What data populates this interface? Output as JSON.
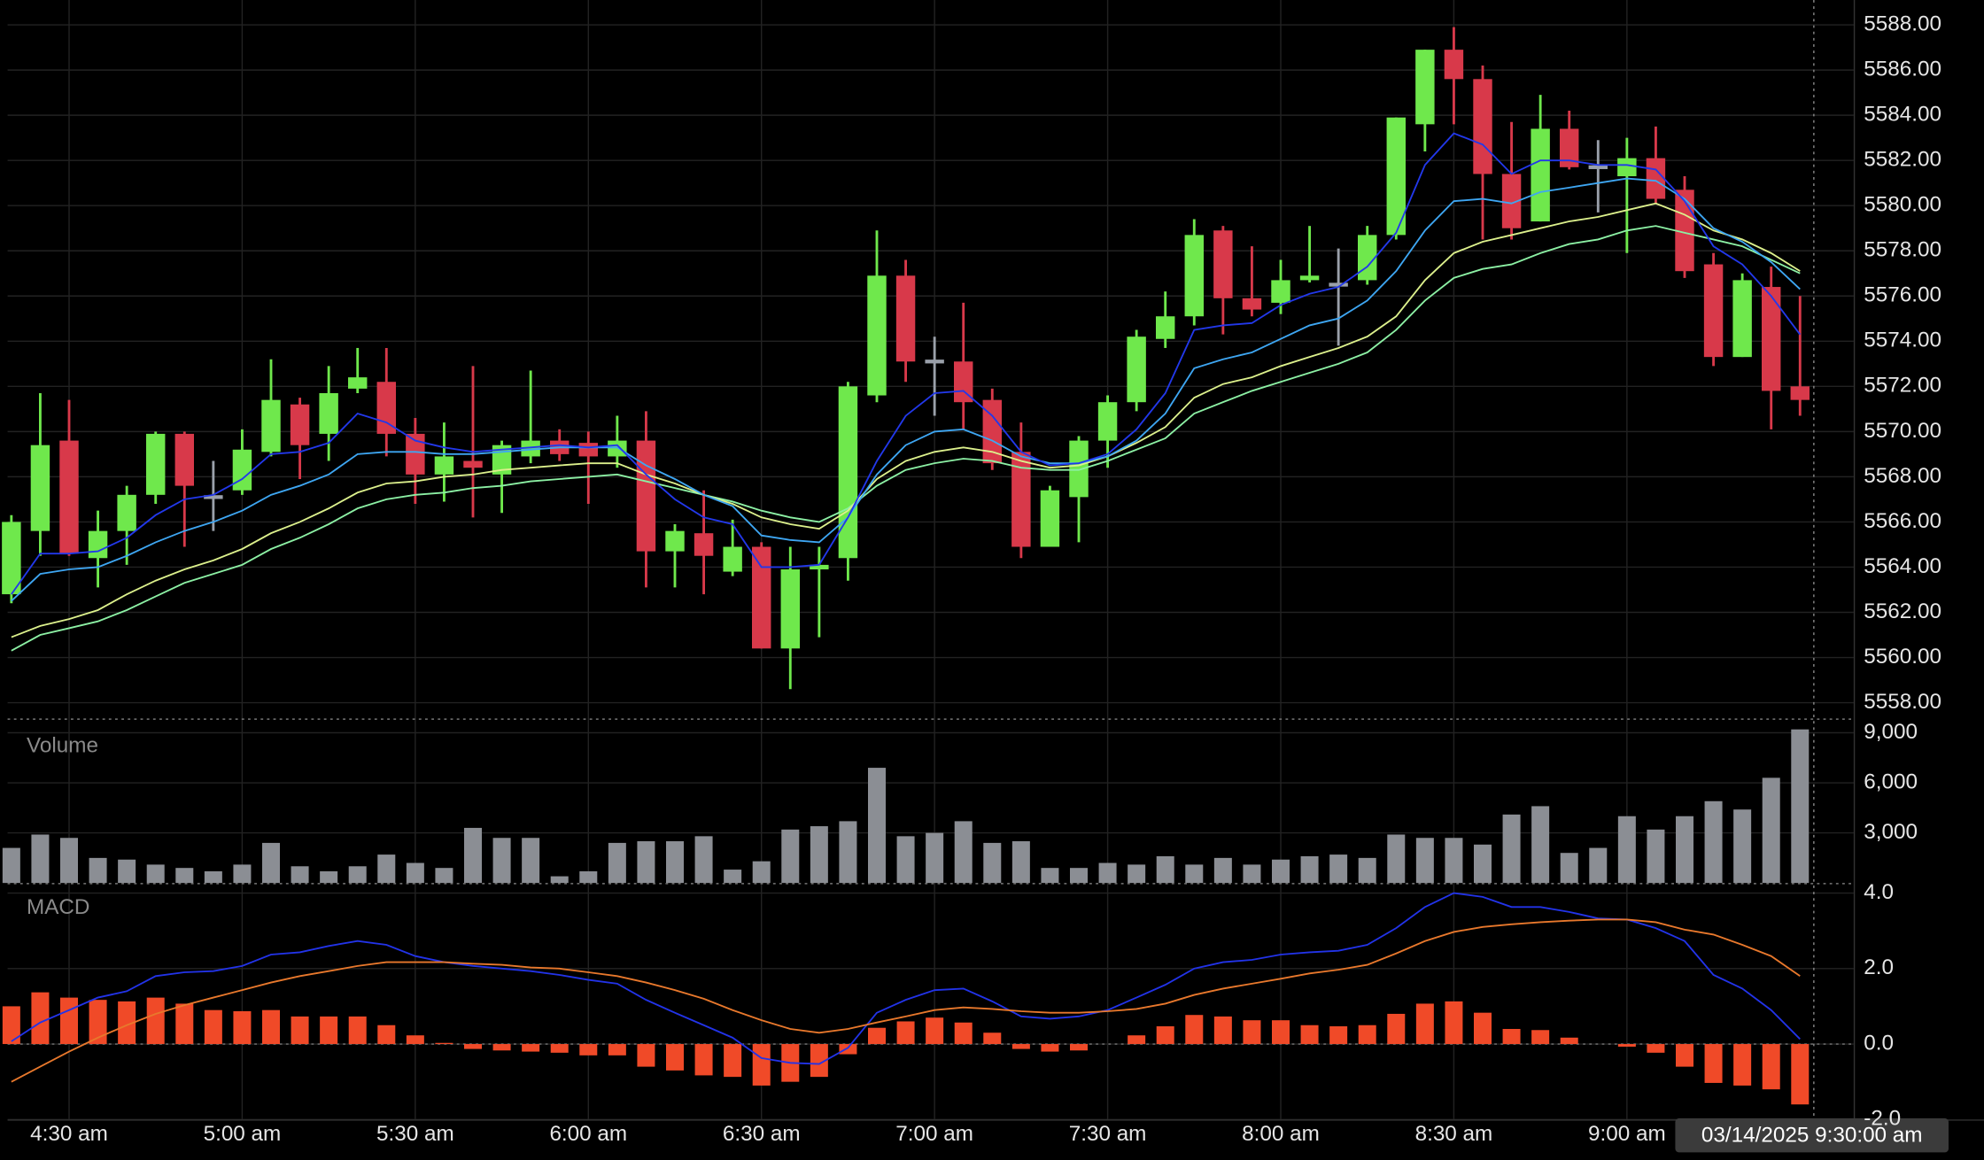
{
  "chart_data": [
    {
      "type": "candlestick",
      "categories": [
        null,
        null,
        "4:30 am",
        null,
        null,
        null,
        null,
        null,
        "5:00 am",
        null,
        null,
        null,
        null,
        null,
        "5:30 am",
        null,
        null,
        null,
        null,
        null,
        "6:00 am",
        null,
        null,
        null,
        null,
        null,
        "6:30 am",
        null,
        null,
        null,
        null,
        null,
        "7:00 am",
        null,
        null,
        null,
        null,
        null,
        "7:30 am",
        null,
        null,
        null,
        null,
        null,
        "8:00 am",
        null,
        null,
        null,
        null,
        null,
        "8:30 am",
        null,
        null,
        null,
        null,
        null,
        "9:00 am",
        null,
        null,
        null,
        null,
        null,
        null
      ],
      "open": [
        5562.8,
        5565.6,
        5569.6,
        5564.4,
        5565.6,
        5567.2,
        5569.9,
        5567.1,
        5567.4,
        5569.1,
        5571.2,
        5569.9,
        5571.9,
        5572.2,
        5569.9,
        5568.1,
        5568.7,
        5568.1,
        5568.9,
        5569.6,
        5569.5,
        5568.9,
        5569.6,
        5564.7,
        5565.5,
        5563.8,
        5564.9,
        5560.4,
        5563.9,
        5564.4,
        5571.6,
        5576.9,
        5573.1,
        5573.1,
        5571.4,
        5569.1,
        5564.9,
        5567.1,
        5569.6,
        5571.3,
        5574.1,
        5575.1,
        5578.9,
        5575.9,
        5575.7,
        5576.7,
        5576.5,
        5576.7,
        5578.7,
        5583.6,
        5586.9,
        5585.6,
        5581.4,
        5579.3,
        5583.4,
        5581.7,
        5581.3,
        5582.1,
        5580.7,
        5577.4,
        5573.3,
        5576.4,
        5572.0
      ],
      "high": [
        5566.3,
        5571.7,
        5571.4,
        5566.5,
        5567.6,
        5570.0,
        5570.0,
        5568.7,
        5570.1,
        5573.2,
        5571.5,
        5572.9,
        5573.7,
        5573.7,
        5570.6,
        5570.4,
        5572.9,
        5569.6,
        5572.7,
        5570.1,
        5570.0,
        5570.7,
        5570.9,
        5565.9,
        5567.4,
        5566.1,
        5565.1,
        5564.9,
        5564.9,
        5572.2,
        5578.9,
        5577.6,
        5574.2,
        5575.7,
        5571.9,
        5570.4,
        5567.6,
        5569.8,
        5571.6,
        5574.5,
        5576.2,
        5579.4,
        5579.1,
        5578.2,
        5577.6,
        5579.1,
        5578.1,
        5579.1,
        5583.9,
        5586.9,
        5587.9,
        5586.2,
        5583.7,
        5584.9,
        5584.2,
        5582.9,
        5583.0,
        5583.5,
        5581.3,
        5577.9,
        5577.0,
        5577.3,
        5576.0
      ],
      "low": [
        5562.4,
        5564.5,
        5564.5,
        5563.1,
        5564.1,
        5566.8,
        5564.9,
        5565.6,
        5567.2,
        5568.9,
        5567.9,
        5568.7,
        5571.7,
        5568.9,
        5566.8,
        5566.9,
        5566.2,
        5566.4,
        5568.6,
        5568.7,
        5566.8,
        5568.4,
        5563.1,
        5563.1,
        5562.8,
        5563.6,
        5560.4,
        5558.6,
        5560.9,
        5563.4,
        5571.3,
        5572.2,
        5570.7,
        5570.1,
        5568.3,
        5564.4,
        5564.9,
        5565.1,
        5568.4,
        5570.9,
        5573.7,
        5574.7,
        5574.3,
        5575.1,
        5575.2,
        5576.6,
        5573.8,
        5576.5,
        5578.5,
        5582.4,
        5583.6,
        5578.5,
        5578.5,
        5579.3,
        5581.6,
        5579.7,
        5577.9,
        5580.1,
        5576.8,
        5572.9,
        5573.3,
        5570.1,
        5570.7
      ],
      "close": [
        5566.0,
        5569.4,
        5564.6,
        5565.6,
        5567.2,
        5569.9,
        5567.6,
        5567.1,
        5569.2,
        5571.4,
        5569.4,
        5571.7,
        5572.4,
        5569.9,
        5568.1,
        5568.9,
        5568.4,
        5569.4,
        5569.6,
        5569.0,
        5568.9,
        5569.6,
        5564.7,
        5565.6,
        5564.5,
        5564.9,
        5560.4,
        5563.9,
        5564.1,
        5572.0,
        5576.9,
        5573.1,
        5573.1,
        5571.3,
        5568.6,
        5564.9,
        5567.4,
        5569.6,
        5571.3,
        5574.2,
        5575.1,
        5578.7,
        5575.9,
        5575.4,
        5576.7,
        5576.9,
        5576.5,
        5578.7,
        5583.9,
        5586.9,
        5585.6,
        5581.4,
        5579.0,
        5583.4,
        5581.7,
        5581.7,
        5582.1,
        5580.3,
        5577.1,
        5573.3,
        5576.7,
        5571.8,
        5571.4
      ],
      "up_color": "#6fe84c",
      "down_color": "#d8394a",
      "doji_color": "#9aa0aa",
      "series": [
        {
          "color": "#8cf0a4",
          "values": [
            5560.3,
            5561.0,
            5561.3,
            5561.6,
            5562.1,
            5562.7,
            5563.3,
            5563.7,
            5564.1,
            5564.8,
            5565.3,
            5565.9,
            5566.6,
            5567.0,
            5567.2,
            5567.3,
            5567.5,
            5567.6,
            5567.8,
            5567.9,
            5568.0,
            5568.1,
            5567.8,
            5567.5,
            5567.2,
            5566.9,
            5566.5,
            5566.2,
            5566.0,
            5566.6,
            5567.6,
            5568.3,
            5568.6,
            5568.8,
            5568.7,
            5568.4,
            5568.3,
            5568.3,
            5568.7,
            5569.2,
            5569.7,
            5570.8,
            5571.3,
            5571.8,
            5572.2,
            5572.6,
            5573.0,
            5573.5,
            5574.5,
            5575.8,
            5576.8,
            5577.2,
            5577.4,
            5577.9,
            5578.3,
            5578.5,
            5578.9,
            5579.1,
            5578.8,
            5578.5,
            5578.2,
            5577.6,
            5577.0
          ]
        },
        {
          "color": "#dcf08c",
          "values": [
            5560.9,
            5561.4,
            5561.7,
            5562.1,
            5562.8,
            5563.4,
            5563.9,
            5564.3,
            5564.8,
            5565.5,
            5566.0,
            5566.6,
            5567.3,
            5567.7,
            5567.8,
            5568.0,
            5568.1,
            5568.3,
            5568.4,
            5568.5,
            5568.6,
            5568.6,
            5568.1,
            5567.7,
            5567.2,
            5566.8,
            5566.2,
            5565.9,
            5565.7,
            5566.5,
            5567.9,
            5568.7,
            5569.1,
            5569.3,
            5569.1,
            5568.7,
            5568.4,
            5568.5,
            5568.9,
            5569.5,
            5570.2,
            5571.5,
            5572.1,
            5572.4,
            5572.9,
            5573.3,
            5573.7,
            5574.2,
            5575.1,
            5576.7,
            5577.9,
            5578.4,
            5578.7,
            5579.0,
            5579.3,
            5579.5,
            5579.8,
            5580.1,
            5579.6,
            5578.9,
            5578.5,
            5577.9,
            5577.1
          ]
        },
        {
          "color": "#3ea6f2",
          "values": [
            5562.5,
            5563.7,
            5563.9,
            5564.0,
            5564.5,
            5565.1,
            5565.6,
            5566.0,
            5566.5,
            5567.2,
            5567.6,
            5568.1,
            5569.0,
            5569.1,
            5569.1,
            5569.0,
            5569.0,
            5569.1,
            5569.2,
            5569.3,
            5569.3,
            5569.3,
            5568.5,
            5567.9,
            5567.2,
            5566.7,
            5565.4,
            5565.2,
            5565.1,
            5566.2,
            5568.1,
            5569.4,
            5570.0,
            5570.1,
            5569.6,
            5568.9,
            5568.6,
            5568.6,
            5568.9,
            5569.6,
            5570.8,
            5572.8,
            5573.2,
            5573.5,
            5574.1,
            5574.7,
            5575.0,
            5575.8,
            5577.1,
            5578.9,
            5580.2,
            5580.3,
            5580.1,
            5580.6,
            5580.8,
            5581.0,
            5581.2,
            5581.1,
            5580.3,
            5579.0,
            5578.4,
            5577.5,
            5576.3
          ]
        },
        {
          "color": "#2238ea",
          "values": [
            5562.8,
            5564.6,
            5564.6,
            5564.7,
            5565.3,
            5566.3,
            5567.0,
            5567.2,
            5567.9,
            5569.0,
            5569.1,
            5569.5,
            5570.8,
            5570.4,
            5569.6,
            5569.3,
            5569.1,
            5569.2,
            5569.3,
            5569.4,
            5569.3,
            5569.4,
            5568.1,
            5567.0,
            5566.2,
            5565.9,
            5564.0,
            5564.0,
            5564.1,
            5566.2,
            5568.7,
            5570.7,
            5571.7,
            5571.8,
            5570.7,
            5569.1,
            5568.5,
            5568.6,
            5569.0,
            5570.1,
            5571.7,
            5574.5,
            5574.7,
            5574.8,
            5575.6,
            5576.1,
            5576.4,
            5577.3,
            5578.8,
            5581.8,
            5583.2,
            5582.7,
            5581.4,
            5582.0,
            5582.0,
            5581.8,
            5581.8,
            5581.6,
            5580.2,
            5578.2,
            5577.4,
            5576.0,
            5574.3
          ]
        }
      ],
      "ylim": [
        5557.3,
        5589.1
      ],
      "yticks": [
        {
          "value": 5558,
          "label": "5558.00"
        },
        {
          "value": 5560,
          "label": "5560.00"
        },
        {
          "value": 5562,
          "label": "5562.00"
        },
        {
          "value": 5564,
          "label": "5564.00"
        },
        {
          "value": 5566,
          "label": "5566.00"
        },
        {
          "value": 5568,
          "label": "5568.00"
        },
        {
          "value": 5570,
          "label": "5570.00"
        },
        {
          "value": 5572,
          "label": "5572.00"
        },
        {
          "value": 5574,
          "label": "5574.00"
        },
        {
          "value": 5576,
          "label": "5576.00"
        },
        {
          "value": 5578,
          "label": "5578.00"
        },
        {
          "value": 5580,
          "label": "5580.00"
        },
        {
          "value": 5582,
          "label": "5582.00"
        },
        {
          "value": 5584,
          "label": "5584.00"
        },
        {
          "value": 5586,
          "label": "5586.00"
        },
        {
          "value": 5588,
          "label": "5588.00"
        }
      ],
      "grid": true,
      "crosshair_label": "03/14/2025 9:30:00 am"
    },
    {
      "type": "bar",
      "title": "Volume",
      "color": "#8b8e94",
      "values": [
        2100,
        2900,
        2700,
        1500,
        1400,
        1100,
        900,
        700,
        1100,
        2400,
        1000,
        700,
        1000,
        1700,
        1200,
        900,
        3300,
        2700,
        2700,
        400,
        700,
        2400,
        2500,
        2500,
        2800,
        800,
        1300,
        3200,
        3400,
        3700,
        6900,
        2800,
        3000,
        3700,
        2400,
        2500,
        900,
        900,
        1200,
        1100,
        1600,
        1100,
        1500,
        1100,
        1400,
        1600,
        1700,
        1500,
        2900,
        2700,
        2700,
        2300,
        4100,
        4600,
        1800,
        2100,
        4000,
        3200,
        4000,
        4900,
        4400,
        6300,
        9200
      ],
      "ylim": [
        0,
        9700
      ],
      "yticks": [
        {
          "value": 3000,
          "label": "3,000"
        },
        {
          "value": 6000,
          "label": "6,000"
        },
        {
          "value": 9000,
          "label": "9,000"
        }
      ],
      "grid": true
    },
    {
      "type": "macd",
      "title": "MACD",
      "color": "#f04a28",
      "values": [
        1.0,
        1.37,
        1.23,
        1.17,
        1.13,
        1.23,
        1.07,
        0.9,
        0.87,
        0.9,
        0.73,
        0.73,
        0.73,
        0.5,
        0.23,
        0.03,
        -0.13,
        -0.17,
        -0.2,
        -0.23,
        -0.3,
        -0.3,
        -0.6,
        -0.7,
        -0.83,
        -0.87,
        -1.1,
        -1.0,
        -0.87,
        -0.27,
        0.43,
        0.6,
        0.7,
        0.57,
        0.3,
        -0.13,
        -0.2,
        -0.17,
        0.0,
        0.23,
        0.47,
        0.77,
        0.73,
        0.63,
        0.63,
        0.5,
        0.47,
        0.5,
        0.8,
        1.07,
        1.13,
        0.83,
        0.4,
        0.37,
        0.17,
        0.0,
        -0.07,
        -0.23,
        -0.6,
        -1.03,
        -1.1,
        -1.2,
        -1.6
      ],
      "series": [
        {
          "color": "#2233e8",
          "values": [
            0.07,
            0.57,
            0.9,
            1.23,
            1.4,
            1.8,
            1.9,
            1.93,
            2.07,
            2.37,
            2.43,
            2.6,
            2.73,
            2.63,
            2.33,
            2.17,
            2.07,
            2.0,
            1.93,
            1.83,
            1.7,
            1.6,
            1.17,
            0.83,
            0.5,
            0.17,
            -0.37,
            -0.5,
            -0.53,
            -0.1,
            0.83,
            1.17,
            1.43,
            1.47,
            1.13,
            0.73,
            0.67,
            0.73,
            0.9,
            1.23,
            1.57,
            2.0,
            2.17,
            2.23,
            2.37,
            2.43,
            2.47,
            2.63,
            3.07,
            3.63,
            4.0,
            3.9,
            3.63,
            3.63,
            3.5,
            3.33,
            3.3,
            3.07,
            2.73,
            1.83,
            1.47,
            0.9,
            0.13
          ]
        },
        {
          "color": "#e8782c",
          "values": [
            -1.0,
            -0.6,
            -0.2,
            0.17,
            0.5,
            0.8,
            1.03,
            1.23,
            1.43,
            1.63,
            1.8,
            1.93,
            2.07,
            2.17,
            2.17,
            2.17,
            2.13,
            2.1,
            2.03,
            2.0,
            1.9,
            1.8,
            1.63,
            1.43,
            1.2,
            0.9,
            0.63,
            0.4,
            0.3,
            0.4,
            0.57,
            0.73,
            0.9,
            0.97,
            0.93,
            0.87,
            0.83,
            0.83,
            0.87,
            0.93,
            1.07,
            1.3,
            1.47,
            1.6,
            1.73,
            1.87,
            1.97,
            2.1,
            2.4,
            2.73,
            2.97,
            3.1,
            3.17,
            3.23,
            3.27,
            3.3,
            3.3,
            3.23,
            3.03,
            2.9,
            2.63,
            2.33,
            1.8
          ]
        }
      ],
      "ylim": [
        -2,
        4.1
      ],
      "yticks": [
        {
          "value": -2,
          "label": "-2.0"
        },
        {
          "value": 0,
          "label": "0.0"
        },
        {
          "value": 2,
          "label": "2.0"
        },
        {
          "value": 4,
          "label": "4.0"
        }
      ],
      "grid": true
    }
  ]
}
